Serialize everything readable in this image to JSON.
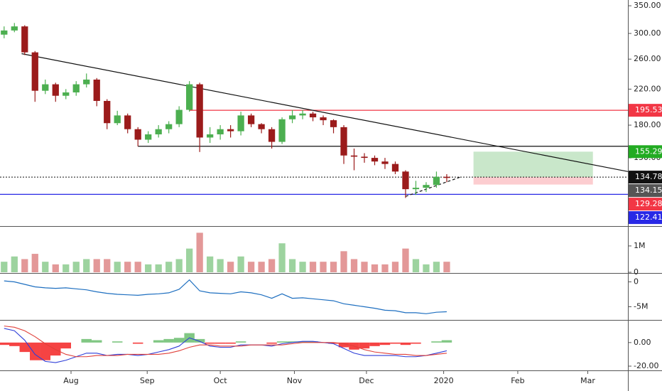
{
  "chart_data": [
    {
      "type": "candlestick",
      "log_scale": true,
      "x": [
        0,
        1,
        2,
        3,
        4,
        5,
        6,
        7,
        8,
        9,
        10,
        11,
        12,
        13,
        14,
        15,
        16,
        17,
        18,
        19,
        20,
        21,
        22,
        23,
        24,
        25,
        26,
        27,
        28,
        29,
        30,
        31,
        32,
        33,
        34,
        35,
        36,
        37,
        38,
        39,
        40,
        41,
        42,
        43
      ],
      "open": [
        298,
        305,
        312,
        270,
        218,
        226,
        212,
        216,
        226,
        232,
        206,
        182,
        190,
        176,
        166,
        171,
        176,
        181,
        196,
        226,
        168,
        171,
        176,
        174,
        190,
        181,
        176,
        164,
        186,
        190,
        192,
        188,
        185,
        178,
        152,
        151,
        150,
        147,
        145,
        139,
        126,
        127,
        129,
        135
      ],
      "high": [
        312,
        318,
        314,
        272,
        232,
        228,
        220,
        230,
        240,
        234,
        208,
        195,
        192,
        178,
        174,
        180,
        184,
        200,
        230,
        228,
        178,
        180,
        180,
        194,
        192,
        182,
        178,
        188,
        196,
        196,
        194,
        190,
        186,
        180,
        158,
        154,
        152,
        150,
        147,
        140,
        132,
        131,
        139,
        137
      ],
      "low": [
        292,
        302,
        266,
        205,
        214,
        205,
        208,
        212,
        222,
        200,
        176,
        180,
        172,
        160,
        163,
        168,
        172,
        178,
        194,
        155,
        163,
        166,
        168,
        170,
        178,
        172,
        158,
        162,
        182,
        186,
        184,
        180,
        172,
        145,
        140,
        146,
        144,
        141,
        137,
        120,
        122,
        124,
        127,
        131
      ],
      "close": [
        305,
        312,
        270,
        218,
        226,
        212,
        216,
        226,
        232,
        206,
        182,
        190,
        176,
        166,
        171,
        176,
        181,
        196,
        226,
        168,
        171,
        176,
        174,
        190,
        181,
        176,
        164,
        186,
        190,
        192,
        188,
        185,
        178,
        152,
        151,
        150,
        147,
        145,
        139,
        126,
        127,
        129,
        135,
        134.15
      ],
      "up_color": "#4caf50",
      "down_color": "#9b1b1b",
      "xlim": [
        -0.4,
        60.6
      ],
      "xticks": [
        {
          "value": 6.5,
          "label": "Aug"
        },
        {
          "value": 13.9,
          "label": "Sep"
        },
        {
          "value": 21.0,
          "label": "Oct"
        },
        {
          "value": 28.2,
          "label": "Nov"
        },
        {
          "value": 35.2,
          "label": "Dec"
        },
        {
          "value": 42.7,
          "label": "2020"
        },
        {
          "value": 49.9,
          "label": "Feb"
        },
        {
          "value": 56.7,
          "label": "Mar"
        }
      ],
      "ylim": [
        103,
        360
      ],
      "yticks": [
        {
          "value": 350,
          "label": "350.00"
        },
        {
          "value": 300,
          "label": "300.00"
        },
        {
          "value": 260,
          "label": "260.00"
        },
        {
          "value": 220,
          "label": "220.00"
        },
        {
          "value": 180,
          "label": "180.00"
        },
        {
          "value": 150,
          "label": "150.00"
        }
      ],
      "price_lines": [
        {
          "value": 195.53,
          "color": "#f23645",
          "line": "solid",
          "from": 18
        },
        {
          "value": 155.29,
          "color": "#22ab22",
          "line": "none"
        },
        {
          "value": 134.78,
          "color": "#111111",
          "line": "dotted",
          "from": -0.4
        },
        {
          "value": 134.15,
          "color": "#555555",
          "line": "none"
        },
        {
          "value": 129.28,
          "color": "#f23645",
          "line": "none"
        },
        {
          "value": 122.41,
          "color": "#2828e6",
          "line": "solid",
          "from": -0.4
        }
      ],
      "trend_lines": [
        {
          "points": [
            [
              1.7,
              268
            ],
            [
              60.6,
              139
            ]
          ],
          "color": "#111111",
          "dash": false
        },
        {
          "points": [
            [
              13,
              160
            ],
            [
              60.6,
              160
            ]
          ],
          "color": "#111111",
          "dash": false
        },
        {
          "points": [
            [
              39,
              121
            ],
            [
              44.4,
              135
            ]
          ],
          "color": "#111111",
          "dash": true
        }
      ],
      "boxes": [
        {
          "x": [
            45.6,
            57.2
          ],
          "y": [
            134.78,
            155.29
          ],
          "color": "rgba(76,175,80,0.3)"
        },
        {
          "x": [
            45.6,
            57.2
          ],
          "y": [
            129.28,
            134.78
          ],
          "color": "rgba(242,54,69,0.25)"
        }
      ]
    },
    {
      "type": "bar",
      "values": [
        0.4,
        0.6,
        0.5,
        0.7,
        0.4,
        0.3,
        0.3,
        0.4,
        0.5,
        0.5,
        0.5,
        0.4,
        0.4,
        0.4,
        0.3,
        0.3,
        0.4,
        0.5,
        0.9,
        1.5,
        0.6,
        0.5,
        0.4,
        0.6,
        0.4,
        0.4,
        0.5,
        1.1,
        0.5,
        0.4,
        0.4,
        0.4,
        0.4,
        0.8,
        0.5,
        0.4,
        0.3,
        0.3,
        0.4,
        0.9,
        0.5,
        0.3,
        0.4,
        0.4
      ],
      "up_color": "rgba(76,175,80,0.55)",
      "down_color": "rgba(200,50,50,0.5)",
      "ylim": [
        0,
        1.7
      ],
      "yticks": [
        {
          "value": 1,
          "label": "1M"
        },
        0
      ]
    },
    {
      "type": "line",
      "values": [
        0.2,
        0,
        -0.5,
        -1,
        -1.2,
        -1.3,
        -1.2,
        -1.4,
        -1.6,
        -2,
        -2.3,
        -2.5,
        -2.6,
        -2.7,
        -2.5,
        -2.4,
        -2.2,
        -1.5,
        0.4,
        -1.8,
        -2.2,
        -2.3,
        -2.4,
        -2,
        -2.2,
        -2.6,
        -3.3,
        -2.4,
        -3.3,
        -3.2,
        -3.4,
        -3.6,
        -3.8,
        -4.4,
        -4.7,
        -5.0,
        -5.3,
        -5.7,
        -5.8,
        -6.2,
        -6.2,
        -6.4,
        -6.1,
        -6.0
      ],
      "color": "#1e6fc0",
      "ylim": [
        -7.5,
        1.5
      ],
      "yticks": [
        0,
        {
          "value": -5,
          "label": "-5M"
        }
      ]
    },
    {
      "type": "macd",
      "series": [
        {
          "color": "#2f3fd8",
          "values": [
            12,
            10,
            2,
            -10,
            -16,
            -17,
            -15,
            -12,
            -9,
            -9,
            -11,
            -10,
            -10,
            -11,
            -10,
            -8,
            -6,
            -3,
            4,
            1,
            -3,
            -4,
            -4,
            -2,
            -2,
            -2,
            -3,
            -1,
            0,
            1,
            1,
            0,
            -1,
            -5,
            -9,
            -11,
            -11,
            -11,
            -11,
            -12,
            -12,
            -11,
            -9,
            -7
          ]
        },
        {
          "color": "#e0403a",
          "values": [
            14,
            13,
            10,
            5,
            -1,
            -6,
            -10,
            -12,
            -12,
            -11,
            -11,
            -11,
            -10,
            -10,
            -10,
            -10,
            -9,
            -7,
            -4,
            -2,
            -2,
            -3,
            -3,
            -3,
            -2,
            -2,
            -2,
            -2,
            -1,
            0,
            0,
            0,
            0,
            -1,
            -3,
            -6,
            -8,
            -9,
            -10,
            -10,
            -11,
            -11,
            -10,
            -9
          ]
        }
      ],
      "histogram": {
        "values": [
          -2,
          -3,
          -8,
          -15,
          -15,
          -11,
          -5,
          0,
          3,
          2,
          0,
          1,
          0,
          -1,
          0,
          2,
          3,
          4,
          8,
          3,
          -1,
          -1,
          -1,
          1,
          0,
          0,
          -1,
          1,
          1,
          1,
          1,
          0,
          -1,
          -4,
          -6,
          -5,
          -3,
          -2,
          -1,
          -2,
          -1,
          0,
          1,
          2
        ],
        "up_color": "rgba(76,175,80,0.7)",
        "down_color": "rgba(242,20,20,0.8)"
      },
      "ylim": [
        -23,
        18
      ],
      "yticks": [
        {
          "value": 0,
          "label": "0.00"
        },
        {
          "value": -20,
          "label": "-20.00"
        }
      ]
    }
  ]
}
